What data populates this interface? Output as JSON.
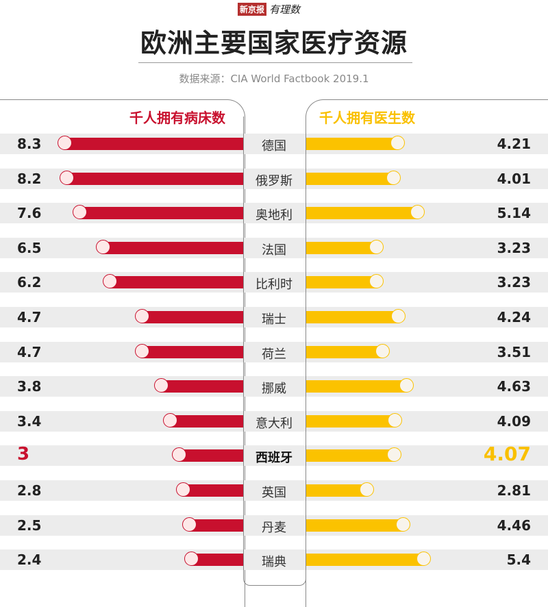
{
  "header": {
    "logo_box": "新京报",
    "logo_script": "有理数",
    "title": "欧洲主要国家医疗资源",
    "source": "数据来源：CIA World Factbook 2019.1"
  },
  "chart_data": {
    "type": "bar",
    "title": "欧洲主要国家医疗资源",
    "categories": [
      "德国",
      "俄罗斯",
      "奥地利",
      "法国",
      "比利时",
      "瑞士",
      "荷兰",
      "挪威",
      "意大利",
      "西班牙",
      "英国",
      "丹麦",
      "瑞典"
    ],
    "highlight": "西班牙",
    "series": [
      {
        "name": "千人拥有病床数",
        "color": "#c8102e",
        "values": [
          "8.3",
          "8.2",
          "7.6",
          "6.5",
          "6.2",
          "4.7",
          "4.7",
          "3.8",
          "3.4",
          "3",
          "2.8",
          "2.5",
          "2.4"
        ]
      },
      {
        "name": "千人拥有医生数",
        "color": "#fbc200",
        "values": [
          "4.21",
          "4.01",
          "5.14",
          "3.23",
          "3.23",
          "4.24",
          "3.51",
          "4.63",
          "4.09",
          "4.07",
          "2.81",
          "4.46",
          "5.4"
        ]
      }
    ]
  }
}
